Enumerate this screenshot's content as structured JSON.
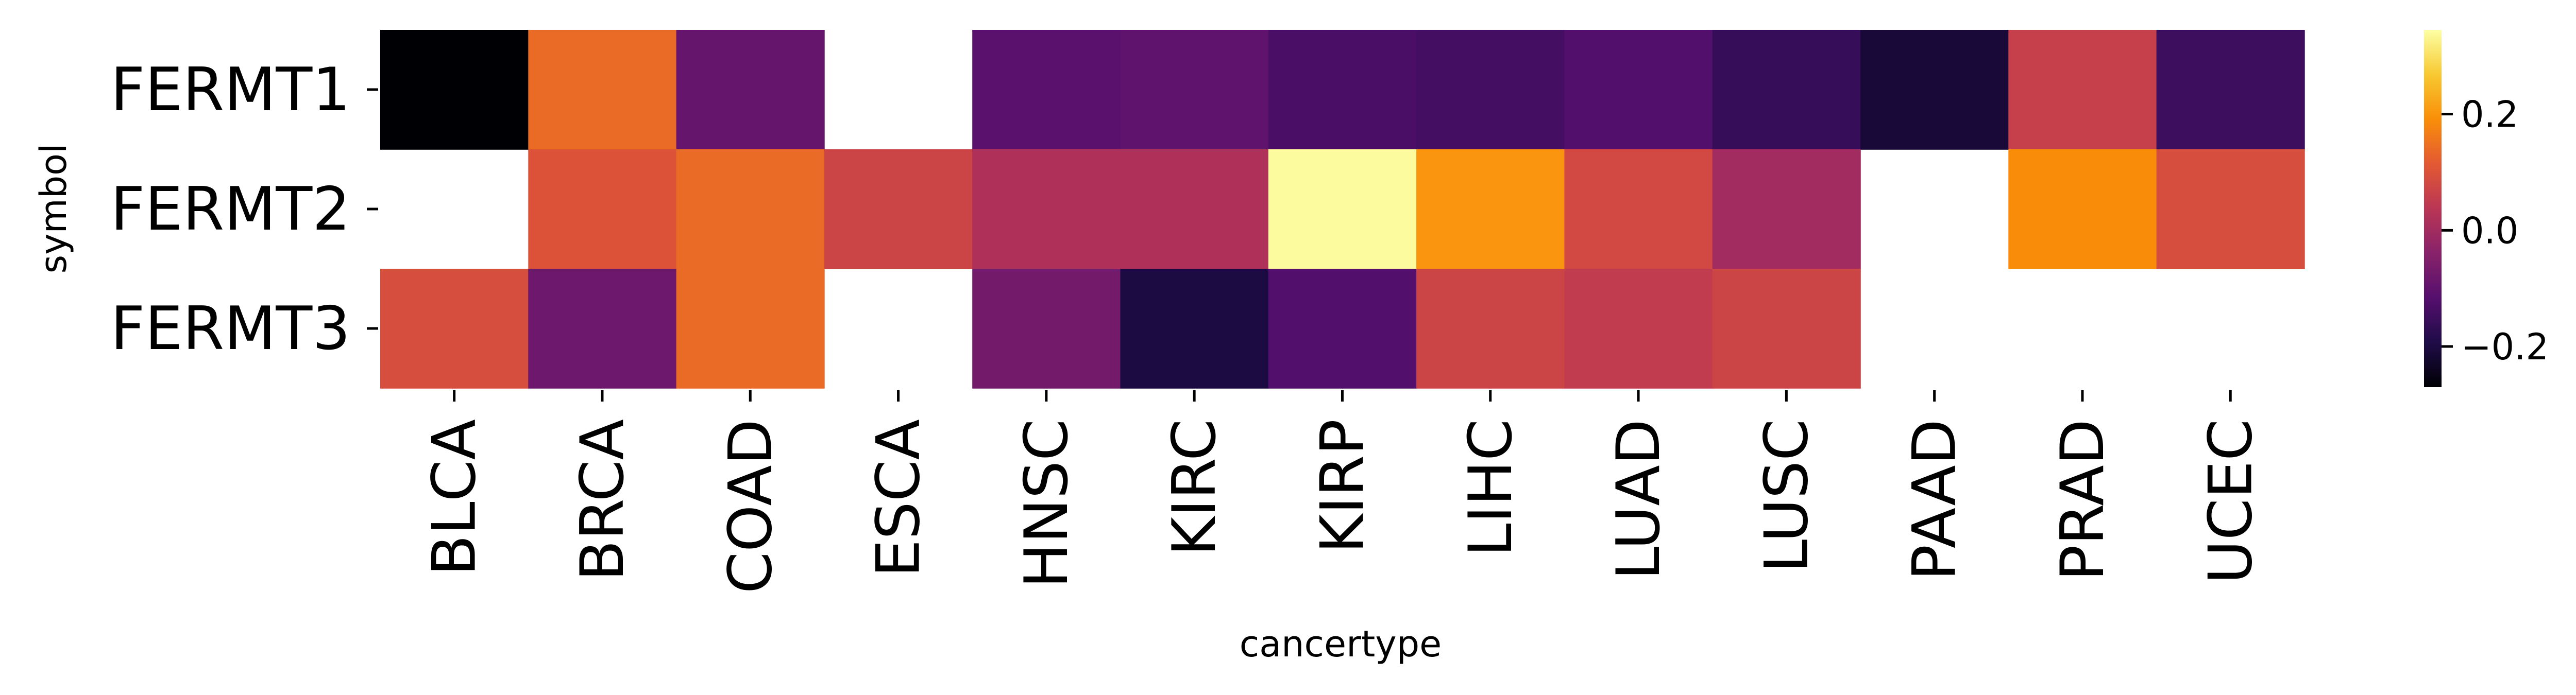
{
  "chart_data": {
    "type": "heatmap",
    "xlabel": "cancertype",
    "ylabel": "symbol",
    "columns": [
      "BLCA",
      "BRCA",
      "COAD",
      "ESCA",
      "HNSC",
      "KIRC",
      "KIRP",
      "LIHC",
      "LUAD",
      "LUSC",
      "PAAD",
      "PRAD",
      "UCEC"
    ],
    "rows": [
      "FERMT1",
      "FERMT2",
      "FERMT3"
    ],
    "values": [
      [
        -0.27,
        0.14,
        -0.09,
        null,
        -0.11,
        -0.1,
        -0.13,
        -0.14,
        -0.12,
        -0.16,
        -0.21,
        0.06,
        -0.15
      ],
      [
        null,
        0.1,
        0.14,
        0.07,
        0.02,
        0.02,
        0.34,
        0.2,
        0.08,
        0.0,
        null,
        0.19,
        0.09
      ],
      [
        0.09,
        -0.08,
        0.14,
        null,
        -0.07,
        -0.2,
        -0.12,
        0.07,
        0.05,
        0.07,
        null,
        null,
        null
      ]
    ],
    "colormap": "inferno",
    "vmin": -0.27,
    "vmax": 0.345,
    "colorbar_ticks": [
      {
        "value": 0.2,
        "label": "0.2"
      },
      {
        "value": 0.0,
        "label": "0.0"
      },
      {
        "value": -0.2,
        "label": "−0.2"
      }
    ],
    "missing_color": "#ffffff",
    "grid": false,
    "legend": "colorbar-right"
  }
}
